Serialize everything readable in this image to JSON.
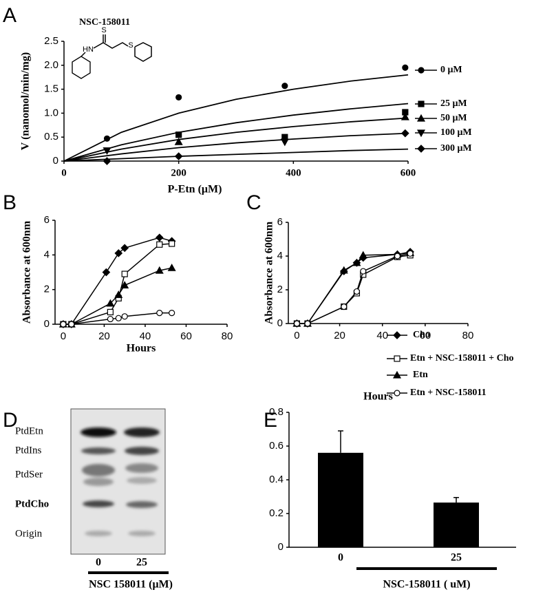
{
  "panels": [
    "A",
    "B",
    "C",
    "D",
    "E"
  ],
  "chart_data": [
    {
      "type": "scatter",
      "annotation": "NSC-158011",
      "structure_atoms": [
        "S",
        "HN",
        "S"
      ],
      "xlabel": "P-Etn (μM)",
      "ylabel": "V (nanomol/min/mg)",
      "xlim": [
        0,
        600
      ],
      "ylim": [
        0,
        2.5
      ],
      "xticks": [
        0,
        200,
        400,
        600
      ],
      "yticks": [
        0,
        0.5,
        {
          "value": 1,
          "label": "1.0"
        },
        1.5,
        {
          "value": 2,
          "label": "2.0"
        },
        2.5
      ],
      "curve_x": [
        0,
        100,
        200,
        300,
        400,
        500,
        600
      ],
      "series": [
        {
          "name": "0 μM",
          "color": "#000000",
          "marker": "circle",
          "x": [
            75,
            200,
            385,
            595
          ],
          "values": [
            0.47,
            1.33,
            1.57,
            1.95
          ],
          "curve": [
            0,
            0.6,
            1.0,
            1.29,
            1.5,
            1.67,
            1.8
          ]
        },
        {
          "name": "25 μM",
          "color": "#000000",
          "marker": "square",
          "x": [
            200,
            385,
            595
          ],
          "values": [
            0.55,
            0.5,
            1.02
          ],
          "curve": [
            0,
            0.34,
            0.6,
            0.8,
            0.96,
            1.09,
            1.2
          ]
        },
        {
          "name": "50 μM",
          "color": "#000000",
          "marker": "triangle",
          "x": [
            200,
            595
          ],
          "values": [
            0.4,
            0.92
          ],
          "curve": [
            0,
            0.25,
            0.45,
            0.6,
            0.72,
            0.82,
            0.9
          ]
        },
        {
          "name": "100 μM",
          "color": "#000000",
          "marker": "triangle-down",
          "x": [
            75,
            385
          ],
          "values": [
            0.22,
            0.4
          ],
          "curve": [
            0,
            0.15,
            0.28,
            0.38,
            0.46,
            0.53,
            0.58
          ]
        },
        {
          "name": "300 μM",
          "color": "#000000",
          "marker": "diamond",
          "x": [
            75,
            200,
            595
          ],
          "values": [
            0,
            0.1,
            0.58
          ],
          "curve": [
            0,
            0.05,
            0.1,
            0.14,
            0.18,
            0.22,
            0.25
          ]
        }
      ]
    },
    {
      "type": "line",
      "xlabel": "Hours",
      "ylabel": "Absorbance at 600nm",
      "xlim": [
        -4,
        80
      ],
      "ylim": [
        0,
        6
      ],
      "xticks": [
        0,
        20,
        40,
        60,
        80
      ],
      "yticks": [
        0,
        2,
        4,
        6
      ],
      "series": [
        {
          "color": "#000000",
          "marker": "diamond",
          "x": [
            0,
            4,
            21,
            27,
            30,
            47,
            53
          ],
          "values": [
            0,
            0,
            3,
            4.1,
            4.4,
            5,
            4.8
          ]
        },
        {
          "color": "#000000",
          "marker": "square-open",
          "x": [
            0,
            4,
            23,
            27,
            30,
            47,
            53
          ],
          "values": [
            0,
            0,
            0.7,
            1.5,
            2.9,
            4.6,
            4.65
          ]
        },
        {
          "color": "#000000",
          "marker": "triangle",
          "x": [
            0,
            4,
            23,
            27,
            30,
            47,
            53
          ],
          "values": [
            0,
            0,
            1.2,
            1.7,
            2.25,
            3.1,
            3.25
          ]
        },
        {
          "color": "#000000",
          "marker": "circle-open",
          "x": [
            0,
            4,
            23,
            27,
            30,
            47,
            53
          ],
          "values": [
            0,
            0,
            0.3,
            0.35,
            0.45,
            0.65,
            0.65
          ]
        }
      ]
    },
    {
      "type": "line",
      "xlabel": "Hours",
      "ylabel": "Absorbance at 600nm",
      "xlim": [
        -4,
        80
      ],
      "ylim": [
        0,
        6
      ],
      "xticks": [
        0,
        20,
        40,
        60,
        80
      ],
      "yticks": [
        0,
        2,
        4,
        6
      ],
      "series": [
        {
          "name": "Cho",
          "color": "#000000",
          "marker": "diamond",
          "x": [
            0,
            5,
            22,
            28,
            31,
            47,
            53
          ],
          "values": [
            0,
            0,
            3.1,
            3.6,
            3.9,
            4.1,
            4.25
          ]
        },
        {
          "name": "Etn + NSC-158011 + Cho",
          "color": "#000000",
          "marker": "square-open",
          "x": [
            0,
            5,
            22,
            28,
            31,
            47,
            53
          ],
          "values": [
            0,
            0,
            1,
            1.8,
            2.9,
            3.95,
            4.05
          ]
        },
        {
          "name": "Etn",
          "color": "#000000",
          "marker": "triangle",
          "x": [
            0,
            5,
            22,
            28,
            31,
            47,
            53
          ],
          "values": [
            0,
            0,
            3.15,
            3.6,
            4.05,
            4.1,
            4.2
          ]
        },
        {
          "name": "Etn + NSC-158011",
          "color": "#000000",
          "marker": "circle-open",
          "x": [
            0,
            5,
            22,
            28,
            31,
            47,
            53
          ],
          "values": [
            0,
            0,
            1,
            1.9,
            3.1,
            4,
            4.15
          ]
        }
      ]
    },
    {
      "type": "bar",
      "xlabel": "NSC-158011 ( uM)",
      "color": "#000000",
      "categories": [
        "0",
        "25"
      ],
      "values": [
        0.56,
        0.265
      ],
      "errors": [
        0.13,
        0.03
      ],
      "ylim": [
        0,
        0.8
      ],
      "yticks": [
        0,
        0.2,
        0.4,
        0.6,
        0.8
      ]
    }
  ],
  "tlc": {
    "bands": [
      "PtdEtn",
      "PtdIns",
      "PtdSer",
      "PtdCho",
      "Origin"
    ],
    "lanes": [
      "0",
      "25"
    ],
    "xlabel": "NSC 158011 (μM)"
  }
}
